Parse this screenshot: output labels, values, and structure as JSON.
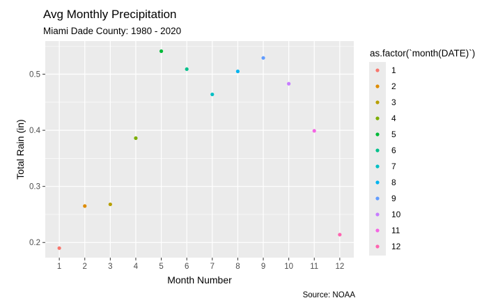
{
  "chart_data": {
    "type": "scatter",
    "title": "Avg Monthly Precipitation",
    "subtitle": "Miami Dade County: 1980 - 2020",
    "xlabel": "Month Number",
    "ylabel": "Total Rain (in)",
    "caption": "Source: NOAA",
    "x_ticks": [
      "1",
      "2",
      "3",
      "4",
      "5",
      "6",
      "7",
      "8",
      "9",
      "10",
      "11",
      "12"
    ],
    "y_ticks": [
      "0.2",
      "0.3",
      "0.4",
      "0.5"
    ],
    "y_tick_values": [
      0.2,
      0.3,
      0.4,
      0.5
    ],
    "xlim": [
      0.45,
      12.55
    ],
    "ylim": [
      0.173,
      0.559
    ],
    "grid": true,
    "legend": {
      "title": "as.factor(`month(DATE)`)",
      "placement": "right",
      "entries": [
        "1",
        "2",
        "3",
        "4",
        "5",
        "6",
        "7",
        "8",
        "9",
        "10",
        "11",
        "12"
      ]
    },
    "points": [
      {
        "x": 1,
        "y": 0.19,
        "label": "1"
      },
      {
        "x": 2,
        "y": 0.265,
        "label": "2"
      },
      {
        "x": 3,
        "y": 0.268,
        "label": "3"
      },
      {
        "x": 4,
        "y": 0.386,
        "label": "4"
      },
      {
        "x": 5,
        "y": 0.541,
        "label": "5"
      },
      {
        "x": 6,
        "y": 0.509,
        "label": "6"
      },
      {
        "x": 7,
        "y": 0.464,
        "label": "7"
      },
      {
        "x": 8,
        "y": 0.505,
        "label": "8"
      },
      {
        "x": 9,
        "y": 0.529,
        "label": "9"
      },
      {
        "x": 10,
        "y": 0.483,
        "label": "10"
      },
      {
        "x": 11,
        "y": 0.399,
        "label": "11"
      },
      {
        "x": 12,
        "y": 0.214,
        "label": "12"
      }
    ],
    "colors": [
      "#F8766D",
      "#DE8C00",
      "#B79F00",
      "#7CAE00",
      "#00BA38",
      "#00C08B",
      "#00BFC4",
      "#00B4F0",
      "#619CFF",
      "#C77CFF",
      "#F564E3",
      "#FF64B0"
    ],
    "panel_background": "#EBEBEB",
    "grid_color": "#FFFFFF"
  }
}
